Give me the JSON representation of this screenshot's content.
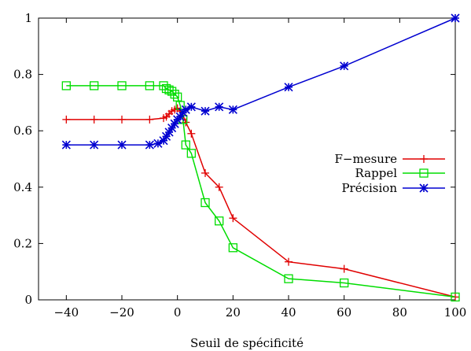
{
  "chart_data": {
    "type": "line",
    "title": "",
    "xlabel": "Seuil de spécificité",
    "ylabel": "",
    "xlim": [
      -50,
      100
    ],
    "ylim": [
      0,
      1
    ],
    "xticks": [
      -40,
      -20,
      0,
      20,
      40,
      60,
      80,
      100
    ],
    "yticks": [
      0,
      0.2,
      0.4,
      0.6,
      0.8,
      1
    ],
    "ytick_labels": [
      "0",
      "0.2",
      "0.4",
      "0.6",
      "0.8",
      "1"
    ],
    "grid": false,
    "legend_position": "right",
    "series": [
      {
        "name": "F−mesure",
        "color": "#e00000",
        "marker": "plus",
        "x": [
          -40,
          -30,
          -20,
          -10,
          -5,
          -4,
          -3,
          -2,
          -1,
          0,
          1,
          2,
          3,
          5,
          10,
          15,
          20,
          40,
          60,
          100
        ],
        "y": [
          0.64,
          0.64,
          0.64,
          0.64,
          0.645,
          0.65,
          0.66,
          0.67,
          0.675,
          0.68,
          0.67,
          0.655,
          0.63,
          0.59,
          0.45,
          0.4,
          0.29,
          0.135,
          0.11,
          0.01
        ]
      },
      {
        "name": "Rappel",
        "color": "#00dd00",
        "marker": "square",
        "x": [
          -40,
          -30,
          -20,
          -10,
          -5,
          -4,
          -3,
          -2,
          -1,
          0,
          1,
          2,
          3,
          5,
          10,
          15,
          20,
          40,
          60,
          100
        ],
        "y": [
          0.76,
          0.76,
          0.76,
          0.76,
          0.76,
          0.75,
          0.745,
          0.74,
          0.73,
          0.72,
          0.69,
          0.64,
          0.55,
          0.52,
          0.345,
          0.28,
          0.185,
          0.075,
          0.06,
          0.01
        ]
      },
      {
        "name": "Précision",
        "color": "#0000d0",
        "marker": "star",
        "x": [
          -40,
          -30,
          -20,
          -10,
          -7,
          -5,
          -4,
          -3,
          -2,
          -1,
          0,
          1,
          2,
          3,
          5,
          10,
          15,
          20,
          40,
          60,
          100
        ],
        "y": [
          0.55,
          0.55,
          0.55,
          0.55,
          0.555,
          0.565,
          0.58,
          0.595,
          0.61,
          0.625,
          0.64,
          0.65,
          0.665,
          0.675,
          0.685,
          0.67,
          0.685,
          0.675,
          0.755,
          0.83,
          1.0
        ]
      }
    ]
  }
}
